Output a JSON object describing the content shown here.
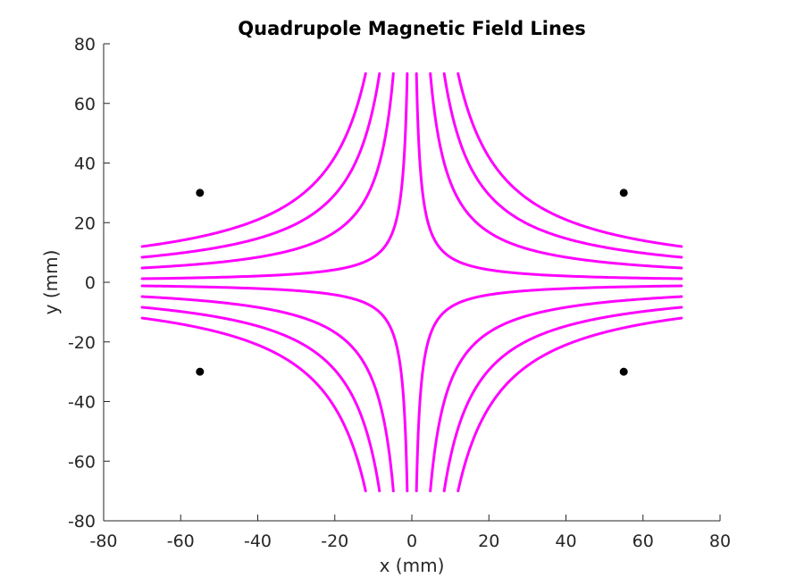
{
  "chart_data": {
    "type": "line",
    "title": "Quadrupole Magnetic Field Lines",
    "xlabel": "x (mm)",
    "ylabel": "y (mm)",
    "xlim": [
      -80,
      80
    ],
    "ylim": [
      -80,
      80
    ],
    "xticks": [
      -80,
      -60,
      -40,
      -20,
      0,
      20,
      40,
      60,
      80
    ],
    "yticks": [
      -80,
      -60,
      -40,
      -20,
      0,
      20,
      40,
      60,
      80
    ],
    "grid": false,
    "line_color": "#ff00ff",
    "marker_color": "#000000",
    "field_lines": {
      "form": "x*y = C",
      "C_values": [
        -840,
        -588,
        -336,
        -84,
        84,
        336,
        588,
        840
      ],
      "x_range": [
        -70,
        70
      ],
      "y_range": [
        -70,
        70
      ]
    },
    "pole_markers": [
      {
        "x": -55,
        "y": 30
      },
      {
        "x": 55,
        "y": 30
      },
      {
        "x": -55,
        "y": -30
      },
      {
        "x": 55,
        "y": -30
      }
    ]
  }
}
